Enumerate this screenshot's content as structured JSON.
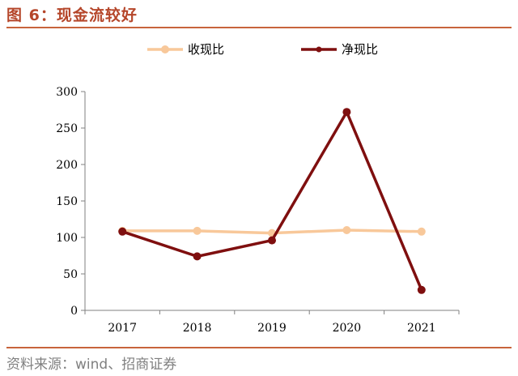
{
  "header": {
    "title": "图 6：现金流较好"
  },
  "footer": {
    "source": "资料来源：wind、招商证券"
  },
  "colors": {
    "accent": "#c8643c",
    "title": "#b5462a"
  },
  "chart_data": {
    "type": "line",
    "categories": [
      "2017",
      "2018",
      "2019",
      "2020",
      "2021"
    ],
    "series": [
      {
        "name": "收现比",
        "color": "#f8c89a",
        "values": [
          109,
          109,
          106,
          110,
          108
        ]
      },
      {
        "name": "净现比",
        "color": "#7f0f0f",
        "values": [
          108,
          74,
          96,
          272,
          28
        ]
      }
    ],
    "ylim": [
      0,
      300
    ],
    "yticks": [
      0,
      50,
      100,
      150,
      200,
      250,
      300
    ],
    "grid": false,
    "legend": "top-center"
  }
}
